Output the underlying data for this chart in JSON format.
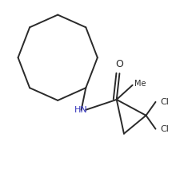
{
  "bg_color": "#ffffff",
  "line_color": "#2a2a2a",
  "label_color_hn": "#3333bb",
  "label_color_o": "#2a2a2a",
  "label_color_cl": "#2a2a2a",
  "figsize": [
    2.4,
    2.22
  ],
  "dpi": 100,
  "hn_label": "HN",
  "o_label": "O",
  "cl_label": "Cl",
  "me_label": "Me"
}
